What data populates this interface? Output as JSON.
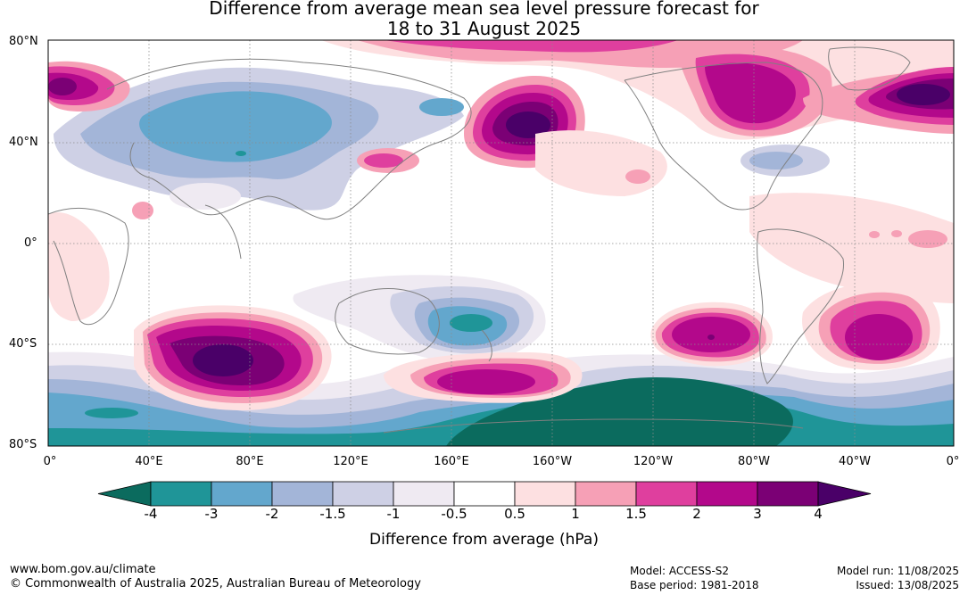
{
  "title": {
    "line1": "Difference from average mean sea level pressure forecast for",
    "line2": "18 to 31 August 2025"
  },
  "axes": {
    "lat_labels": [
      "80°N",
      "40°N",
      "0°",
      "40°S",
      "80°S"
    ],
    "lon_labels": [
      "0°",
      "40°E",
      "80°E",
      "120°E",
      "160°E",
      "160°W",
      "120°W",
      "80°W",
      "40°W",
      "0°"
    ]
  },
  "colorbar": {
    "title": "Difference from average (hPa)",
    "labels": [
      "-4",
      "-3",
      "-2",
      "-1.5",
      "-1",
      "-0.5",
      "0.5",
      "1",
      "1.5",
      "2",
      "3",
      "4"
    ],
    "colors": [
      "#0b6b5e",
      "#1f9598",
      "#63a7cd",
      "#a3b5d8",
      "#ced0e5",
      "#efeaf2",
      "#ffffff",
      "#fde0e1",
      "#f6a0b6",
      "#df3f9e",
      "#b3088b",
      "#7b0075",
      "#4a0068"
    ]
  },
  "footer": {
    "website": "www.bom.gov.au/climate",
    "copyright": "© Commonwealth of Australia 2025, Australian Bureau of Meteorology",
    "model": "Model: ACCESS-S2",
    "base_period": "Base period: 1981-2018",
    "model_run": "Model run: 11/08/2025",
    "issued": "Issued: 13/08/2025"
  }
}
